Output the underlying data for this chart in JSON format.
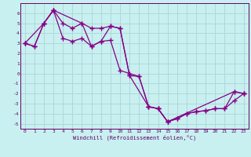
{
  "xlabel": "Windchill (Refroidissement éolien,°C)",
  "bg_color": "#c8f0f0",
  "grid_color": "#b0d8d8",
  "line_color": "#880088",
  "xlim": [
    -0.5,
    23.5
  ],
  "ylim": [
    -5.5,
    7.0
  ],
  "xtick_labels": [
    "0",
    "1",
    "2",
    "3",
    "4",
    "5",
    "6",
    "7",
    "8",
    "9",
    "10",
    "11",
    "12",
    "13",
    "14",
    "15",
    "16",
    "17",
    "18",
    "19",
    "20",
    "21",
    "22",
    "23"
  ],
  "ytick_values": [
    -5,
    -4,
    -3,
    -2,
    -1,
    0,
    1,
    2,
    3,
    4,
    5,
    6
  ],
  "series_x": [
    [
      0,
      1,
      2,
      3,
      4,
      5,
      6,
      7,
      8,
      9,
      10,
      11,
      12,
      13,
      14,
      15,
      22,
      23
    ],
    [
      0,
      2,
      3,
      4,
      5,
      6,
      7,
      8,
      9,
      10,
      11,
      12,
      13,
      14,
      15,
      16,
      17,
      18,
      19,
      20,
      21,
      22,
      23
    ],
    [
      0,
      1,
      2,
      3,
      6,
      7,
      8,
      9,
      10,
      11,
      13,
      14,
      15,
      16,
      17,
      18,
      19,
      20,
      21,
      22,
      23
    ]
  ],
  "series_y": [
    [
      3.0,
      2.7,
      5.0,
      6.3,
      5.0,
      4.5,
      5.0,
      4.5,
      4.5,
      4.7,
      4.5,
      -0.2,
      -0.3,
      -3.3,
      -3.5,
      -4.8,
      -1.8,
      -2.0
    ],
    [
      3.0,
      5.0,
      6.3,
      3.5,
      3.2,
      3.5,
      2.7,
      3.2,
      3.3,
      0.3,
      0.0,
      -0.3,
      -3.3,
      -3.5,
      -4.8,
      -4.5,
      -4.0,
      -3.8,
      -3.7,
      -3.5,
      -3.5,
      -2.7,
      -2.0
    ],
    [
      3.0,
      2.7,
      5.0,
      6.3,
      5.0,
      2.7,
      3.2,
      4.7,
      4.5,
      -0.2,
      -3.3,
      -3.5,
      -4.8,
      -4.5,
      -4.0,
      -3.8,
      -3.7,
      -3.5,
      -3.5,
      -1.8,
      -2.0
    ]
  ]
}
